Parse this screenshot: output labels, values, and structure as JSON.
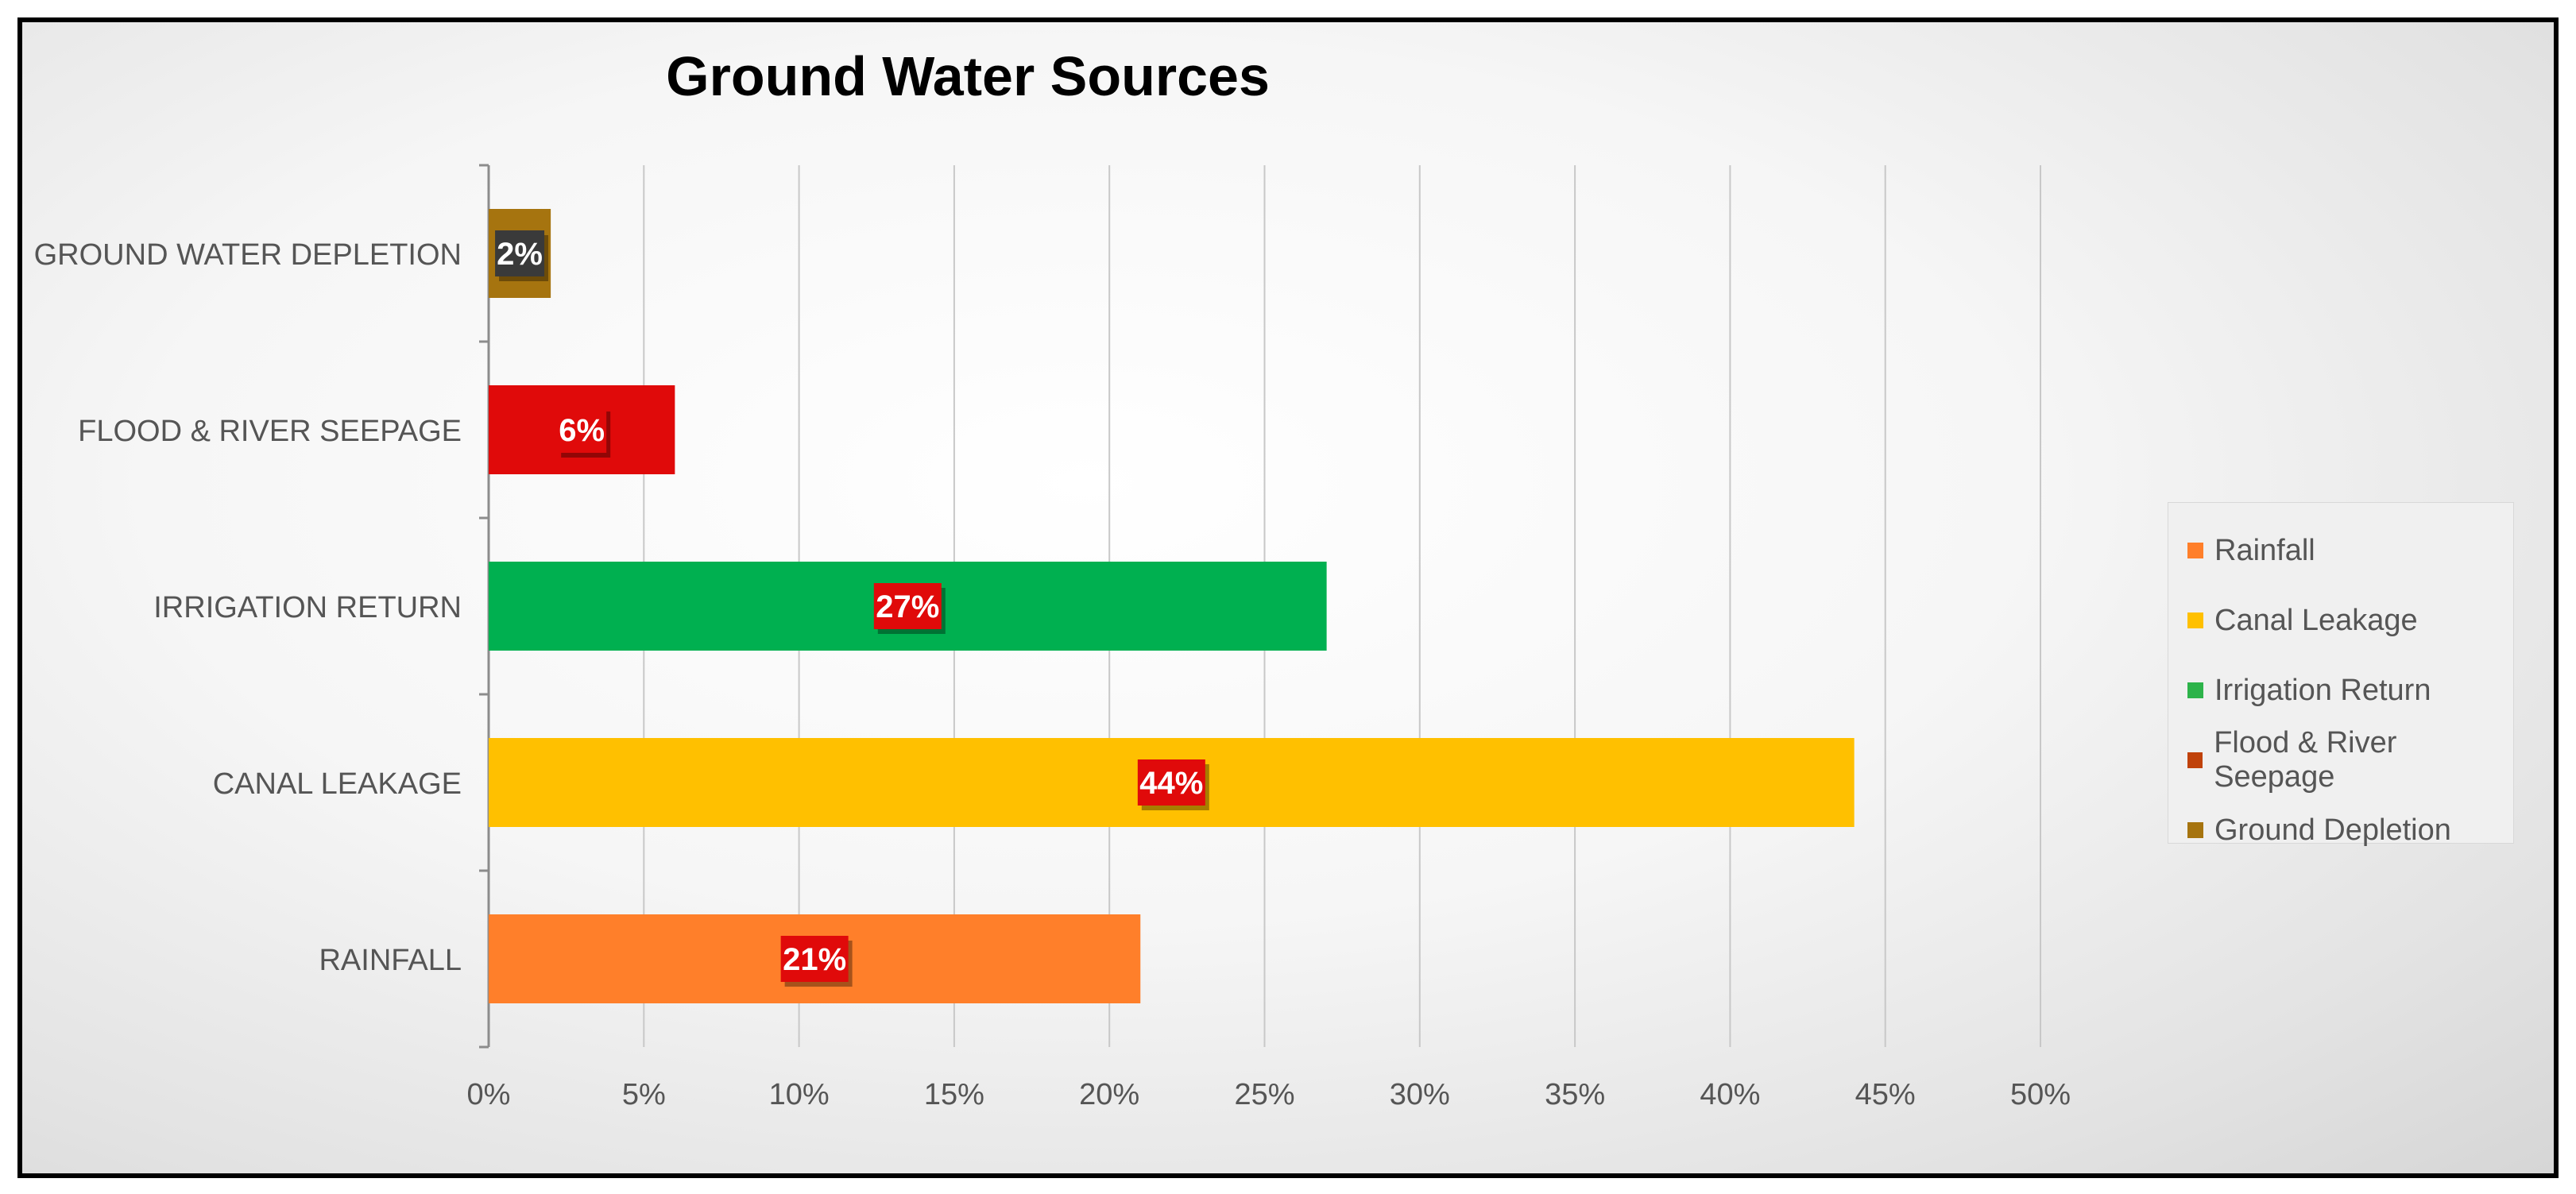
{
  "chart_data": {
    "type": "bar",
    "orientation": "horizontal",
    "title": "Ground Water Sources",
    "categories": [
      "GROUND WATER DEPLETION",
      "FLOOD & RIVER SEEPAGE",
      "IRRIGATION RETURN",
      "CANAL LEAKAGE",
      "RAINFALL"
    ],
    "values": [
      2,
      6,
      27,
      44,
      21
    ],
    "data_labels": [
      "2%",
      "6%",
      "27%",
      "44%",
      "21%"
    ],
    "bar_colors": [
      "#a6740f",
      "#e00a0a",
      "#00b050",
      "#ffc000",
      "#ff7f2a"
    ],
    "label_bg_colors": [
      "#3a3a3a",
      "#e00a0a",
      "#e00a0a",
      "#e00a0a",
      "#e00a0a"
    ],
    "xlim": [
      0,
      50
    ],
    "xticks": [
      0,
      5,
      10,
      15,
      20,
      25,
      30,
      35,
      40,
      45,
      50
    ],
    "xtick_labels": [
      "0%",
      "5%",
      "10%",
      "15%",
      "20%",
      "25%",
      "30%",
      "35%",
      "40%",
      "45%",
      "50%"
    ],
    "xlabel": "",
    "ylabel": "",
    "grid": "vertical",
    "legend": {
      "placement": "right",
      "entries": [
        {
          "label": "Rainfall",
          "color": "#ff7f2a"
        },
        {
          "label": "Canal Leakage",
          "color": "#ffc000"
        },
        {
          "label": "Irrigation Return",
          "color": "#2db34a"
        },
        {
          "label": "Flood & River Seepage",
          "color": "#c0420a"
        },
        {
          "label": "Ground Depletion",
          "color": "#a6740f"
        }
      ]
    }
  }
}
